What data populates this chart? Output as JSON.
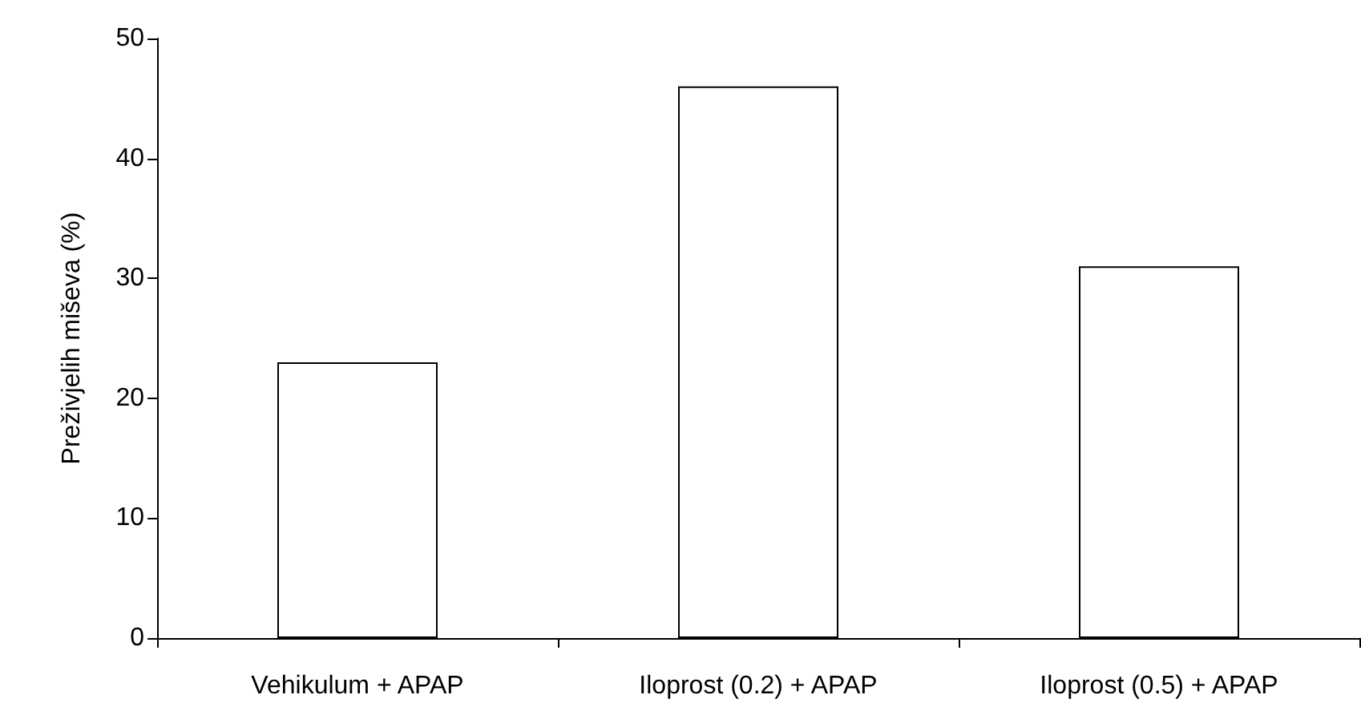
{
  "chart_data": {
    "type": "bar",
    "ylabel": "Preživjelih miševa (%)",
    "categories": [
      "Vehikulum + APAP",
      "Iloprost (0.2) + APAP",
      "Iloprost (0.5) + APAP"
    ],
    "values": [
      23,
      46,
      31
    ],
    "color": "#ffffff",
    "ylim": [
      0,
      50
    ],
    "yticks": [
      0,
      10,
      20,
      30,
      40,
      50
    ],
    "grid": false
  }
}
